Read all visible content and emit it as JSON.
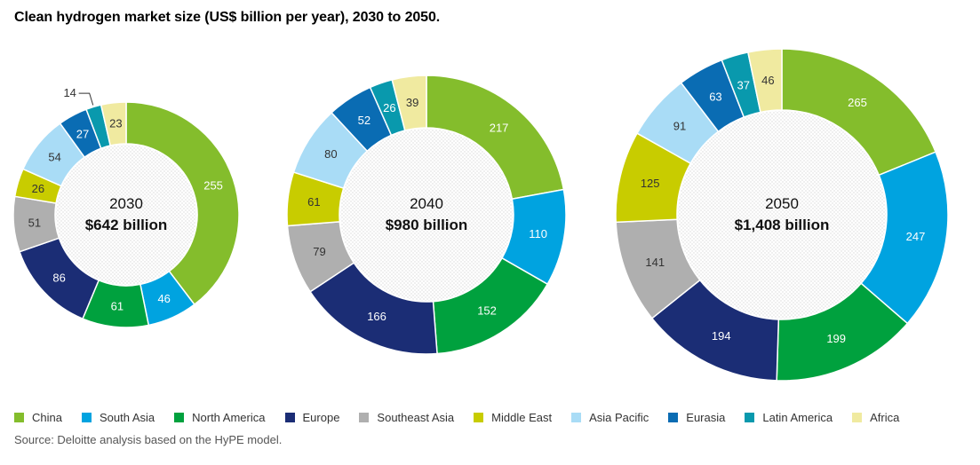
{
  "title": "Clean hydrogen market size (US$ billion per year), 2030 to 2050.",
  "source": "Source: Deloitte analysis based on the HyPE model.",
  "colors": {
    "China": "#84bd2c",
    "South Asia": "#00a3e0",
    "North America": "#00a13e",
    "Europe": "#1b2d75",
    "Southeast Asia": "#afafaf",
    "Middle East": "#c8cc00",
    "Asia Pacific": "#a9dcf6",
    "Eurasia": "#0a6cb3",
    "Latin America": "#0999ad",
    "Africa": "#f0eaa0"
  },
  "legend": [
    "China",
    "South Asia",
    "North America",
    "Europe",
    "Southeast Asia",
    "Middle East",
    "Asia Pacific",
    "Eurasia",
    "Latin America",
    "Africa"
  ],
  "chart_data": [
    {
      "type": "pie",
      "year": "2030",
      "total_label": "$642 billion",
      "categories": [
        "China",
        "South Asia",
        "North America",
        "Europe",
        "Southeast Asia",
        "Middle East",
        "Asia Pacific",
        "Eurasia",
        "Latin America",
        "Africa"
      ],
      "values": [
        255,
        46,
        61,
        86,
        51,
        26,
        54,
        27,
        14,
        23
      ]
    },
    {
      "type": "pie",
      "year": "2040",
      "total_label": "$980 billion",
      "categories": [
        "China",
        "South Asia",
        "North America",
        "Europe",
        "Southeast Asia",
        "Middle East",
        "Asia Pacific",
        "Eurasia",
        "Latin America",
        "Africa"
      ],
      "values": [
        217,
        110,
        152,
        166,
        79,
        61,
        80,
        52,
        26,
        39
      ]
    },
    {
      "type": "pie",
      "year": "2050",
      "total_label": "$1,408 billion",
      "categories": [
        "China",
        "South Asia",
        "North America",
        "Europe",
        "Southeast Asia",
        "Middle East",
        "Asia Pacific",
        "Eurasia",
        "Latin America",
        "Africa"
      ],
      "values": [
        265,
        247,
        199,
        194,
        141,
        125,
        91,
        63,
        37,
        46
      ]
    }
  ]
}
